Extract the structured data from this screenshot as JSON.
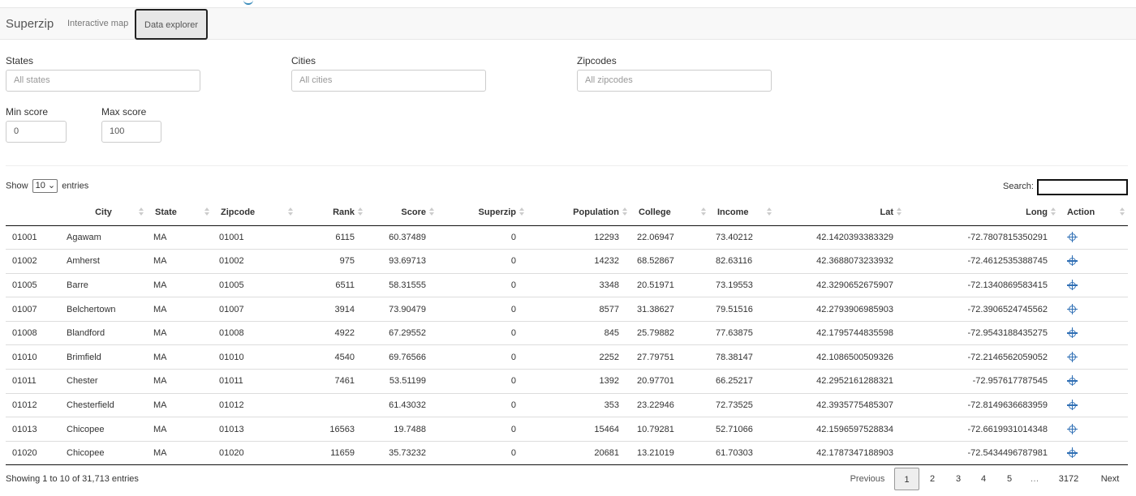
{
  "navbar": {
    "brand": "Superzip",
    "tabs": [
      {
        "label": "Interactive map",
        "active": false
      },
      {
        "label": "Data explorer",
        "active": true
      }
    ]
  },
  "filters": {
    "states": {
      "label": "States",
      "placeholder": "All states"
    },
    "cities": {
      "label": "Cities",
      "placeholder": "All cities"
    },
    "zipcodes": {
      "label": "Zipcodes",
      "placeholder": "All zipcodes"
    },
    "min_score": {
      "label": "Min score",
      "value": "0"
    },
    "max_score": {
      "label": "Max score",
      "value": "100"
    }
  },
  "table_controls": {
    "show_prefix": "Show",
    "entries_value": "10",
    "show_suffix": "entries",
    "search_label": "Search:"
  },
  "table": {
    "columns": [
      "",
      "City",
      "State",
      "Zipcode",
      "Rank",
      "Score",
      "Superzip",
      "Population",
      "College",
      "Income",
      "Lat",
      "Long",
      "Action"
    ],
    "rows": [
      [
        "01001",
        "Agawam",
        "MA",
        "01001",
        "6115",
        "60.37489",
        "0",
        "12293",
        "22.06947",
        "73.40212",
        "42.1420393383329",
        "-72.7807815350291"
      ],
      [
        "01002",
        "Amherst",
        "MA",
        "01002",
        "975",
        "93.69713",
        "0",
        "14232",
        "68.52867",
        "82.63116",
        "42.3688073233932",
        "-72.4612535388745"
      ],
      [
        "01005",
        "Barre",
        "MA",
        "01005",
        "6511",
        "58.31555",
        "0",
        "3348",
        "20.51971",
        "73.19553",
        "42.3290652675907",
        "-72.1340869583415"
      ],
      [
        "01007",
        "Belchertown",
        "MA",
        "01007",
        "3914",
        "73.90479",
        "0",
        "8577",
        "31.38627",
        "79.51516",
        "42.2793906985903",
        "-72.3906524745562"
      ],
      [
        "01008",
        "Blandford",
        "MA",
        "01008",
        "4922",
        "67.29552",
        "0",
        "845",
        "25.79882",
        "77.63875",
        "42.1795744835598",
        "-72.9543188435275"
      ],
      [
        "01010",
        "Brimfield",
        "MA",
        "01010",
        "4540",
        "69.76566",
        "0",
        "2252",
        "27.79751",
        "78.38147",
        "42.1086500509326",
        "-72.2146562059052"
      ],
      [
        "01011",
        "Chester",
        "MA",
        "01011",
        "7461",
        "53.51199",
        "0",
        "1392",
        "20.97701",
        "66.25217",
        "42.2952161288321",
        "-72.957617787545"
      ],
      [
        "01012",
        "Chesterfield",
        "MA",
        "01012",
        "",
        "61.43032",
        "0",
        "353",
        "23.22946",
        "72.73525",
        "42.3935775485307",
        "-72.8149636683959"
      ],
      [
        "01013",
        "Chicopee",
        "MA",
        "01013",
        "16563",
        "19.7488",
        "0",
        "15464",
        "10.79281",
        "52.71066",
        "42.1596597528834",
        "-72.6619931014348"
      ],
      [
        "01020",
        "Chicopee",
        "MA",
        "01020",
        "11659",
        "35.73232",
        "0",
        "20681",
        "13.21019",
        "61.70303",
        "42.1787347188903",
        "-72.5434496787981"
      ]
    ],
    "action_icon": "crosshair-icon"
  },
  "footer": {
    "info": "Showing 1 to 10 of 31,713 entries",
    "pagination": {
      "previous": "Previous",
      "pages": [
        "1",
        "2",
        "3",
        "4",
        "5",
        "…",
        "3172"
      ],
      "active_page": "1",
      "next": "Next"
    }
  },
  "colors": {
    "accent_icon": "#2f6fb5",
    "navbar_bg": "#f8f8f8"
  }
}
